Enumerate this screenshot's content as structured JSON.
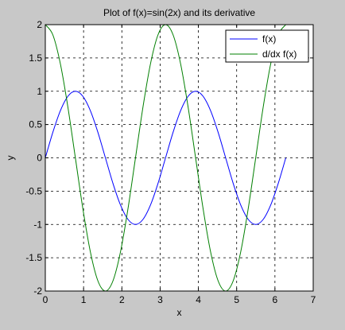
{
  "chart_data": {
    "type": "line",
    "title": "Plot of f(x)=sin(2x) and its derivative",
    "xlabel": "x",
    "ylabel": "y",
    "xlim": [
      0,
      7
    ],
    "ylim": [
      -2,
      2
    ],
    "grid": true,
    "legend_position": "top-right",
    "x_ticks": [
      0,
      1,
      2,
      3,
      4,
      5,
      6,
      7
    ],
    "x_tick_labels": [
      "0",
      "1",
      "2",
      "3",
      "4",
      "5",
      "6",
      "7"
    ],
    "y_ticks": [
      2,
      1.5,
      1,
      0.5,
      0,
      -0.5,
      -1,
      -1.5,
      -2
    ],
    "y_tick_labels": [
      "2",
      "1.5",
      "1",
      "0.5",
      "0",
      "-0.5",
      "-1",
      "-1.5",
      "-2"
    ],
    "series": [
      {
        "name": "f(x)",
        "color": "#0000ff",
        "x": [
          0,
          0.1963,
          0.3927,
          0.589,
          0.7854,
          0.9817,
          1.1781,
          1.3744,
          1.5708,
          1.7671,
          1.9635,
          2.1598,
          2.3562,
          2.5525,
          2.7489,
          2.9452,
          3.1416,
          3.3379,
          3.5343,
          3.7306,
          3.927,
          4.1233,
          4.3197,
          4.516,
          4.7124,
          4.9087,
          5.1051,
          5.3014,
          5.4978,
          5.6941,
          5.8905,
          6.0868,
          6.2832
        ],
        "y": [
          0,
          0.3827,
          0.7071,
          0.9239,
          1,
          0.9239,
          0.7071,
          0.3827,
          0,
          -0.3827,
          -0.7071,
          -0.9239,
          -1,
          -0.9239,
          -0.7071,
          -0.3827,
          0,
          0.3827,
          0.7071,
          0.9239,
          1,
          0.9239,
          0.7071,
          0.3827,
          0,
          -0.3827,
          -0.7071,
          -0.9239,
          -1,
          -0.9239,
          -0.7071,
          -0.3827,
          0
        ]
      },
      {
        "name": "d/dx f(x)",
        "color": "#007f00",
        "x": [
          0,
          0.1963,
          0.3927,
          0.589,
          0.7854,
          0.9817,
          1.1781,
          1.3744,
          1.5708,
          1.7671,
          1.9635,
          2.1598,
          2.3562,
          2.5525,
          2.7489,
          2.9452,
          3.1416,
          3.3379,
          3.5343,
          3.7306,
          3.927,
          4.1233,
          4.3197,
          4.516,
          4.7124,
          4.9087,
          5.1051,
          5.3014,
          5.4978,
          5.6941,
          5.8905,
          6.0868,
          6.2832
        ],
        "y": [
          2,
          1.8478,
          1.4142,
          0.7654,
          0,
          -0.7654,
          -1.4142,
          -1.8478,
          -2,
          -1.8478,
          -1.4142,
          -0.7654,
          0,
          0.7654,
          1.4142,
          1.8478,
          2,
          1.8478,
          1.4142,
          0.7654,
          0,
          -0.7654,
          -1.4142,
          -1.8478,
          -2,
          -1.8478,
          -1.4142,
          -0.7654,
          0,
          0.7654,
          1.4142,
          1.8478,
          2
        ]
      }
    ]
  },
  "colors": {
    "figure_background": "#c8c8c8",
    "axes_background": "#ffffff",
    "grid": "#000000"
  }
}
